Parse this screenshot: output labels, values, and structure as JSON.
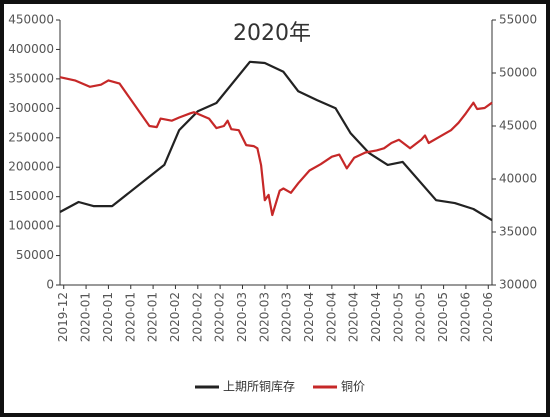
{
  "chart_data": {
    "type": "line",
    "title": "2020年",
    "xlim": [
      0,
      116
    ],
    "xticks": [
      {
        "value": 1,
        "label": "2019-12"
      },
      {
        "value": 7,
        "label": "2020-01"
      },
      {
        "value": 13,
        "label": "2020-01"
      },
      {
        "value": 19,
        "label": "2020-01"
      },
      {
        "value": 25,
        "label": "2020-01"
      },
      {
        "value": 31,
        "label": "2020-02"
      },
      {
        "value": 37,
        "label": "2020-02"
      },
      {
        "value": 43,
        "label": "2020-02"
      },
      {
        "value": 49,
        "label": "2020-03"
      },
      {
        "value": 55,
        "label": "2020-03"
      },
      {
        "value": 61,
        "label": "2020-03"
      },
      {
        "value": 67,
        "label": "2020-04"
      },
      {
        "value": 73,
        "label": "2020-04"
      },
      {
        "value": 79,
        "label": "2020-04"
      },
      {
        "value": 85,
        "label": "2020-04"
      },
      {
        "value": 91,
        "label": "2020-05"
      },
      {
        "value": 97,
        "label": "2020-05"
      },
      {
        "value": 103,
        "label": "2020-05"
      },
      {
        "value": 109,
        "label": "2020-06"
      },
      {
        "value": 115,
        "label": "2020-06"
      }
    ],
    "ylim": [
      0,
      450000
    ],
    "yticks": [
      0,
      50000,
      100000,
      150000,
      200000,
      250000,
      300000,
      350000,
      400000,
      450000
    ],
    "y2lim": [
      30000,
      55000
    ],
    "y2ticks": [
      30000,
      35000,
      40000,
      45000,
      50000,
      55000
    ],
    "grid": false,
    "legend": "bottom",
    "series": [
      {
        "name": "上期所铜库存",
        "color": "#222222",
        "x": [
          0,
          5,
          9,
          14,
          28,
          32,
          37,
          42,
          51,
          55,
          60,
          64,
          69,
          74,
          78,
          83,
          88,
          92,
          101,
          106,
          111,
          116
        ],
        "values": [
          124000,
          141000,
          134000,
          134000,
          204000,
          263000,
          295000,
          309000,
          379000,
          377000,
          362000,
          329000,
          314000,
          300000,
          258000,
          224000,
          204000,
          209000,
          144000,
          139000,
          129000,
          110000
        ]
      },
      {
        "name": "铜价",
        "color": "#c62828",
        "axis": "y2",
        "x": [
          0,
          4,
          8,
          11,
          13,
          16,
          24,
          26,
          27,
          30,
          32,
          35,
          36,
          40,
          42,
          44,
          45,
          46,
          48,
          50,
          52,
          53,
          54,
          55,
          56,
          57,
          59,
          60,
          62,
          64,
          67,
          70,
          73,
          75,
          77,
          79,
          82,
          85,
          87,
          89,
          91,
          94,
          97,
          98,
          99,
          102,
          105,
          107,
          109,
          111,
          112,
          114,
          116
        ],
        "values": [
          49600,
          49300,
          48700,
          48900,
          49300,
          49000,
          45000,
          44900,
          45700,
          45500,
          45800,
          46200,
          46300,
          45700,
          44800,
          45000,
          45500,
          44700,
          44600,
          43200,
          43100,
          42900,
          41300,
          38000,
          38500,
          36600,
          38900,
          39100,
          38700,
          39600,
          40800,
          41400,
          42100,
          42300,
          41000,
          42000,
          42500,
          42700,
          42900,
          43400,
          43700,
          42900,
          43700,
          44100,
          43400,
          44000,
          44600,
          45300,
          46200,
          47200,
          46600,
          46700,
          47200
        ]
      }
    ]
  }
}
